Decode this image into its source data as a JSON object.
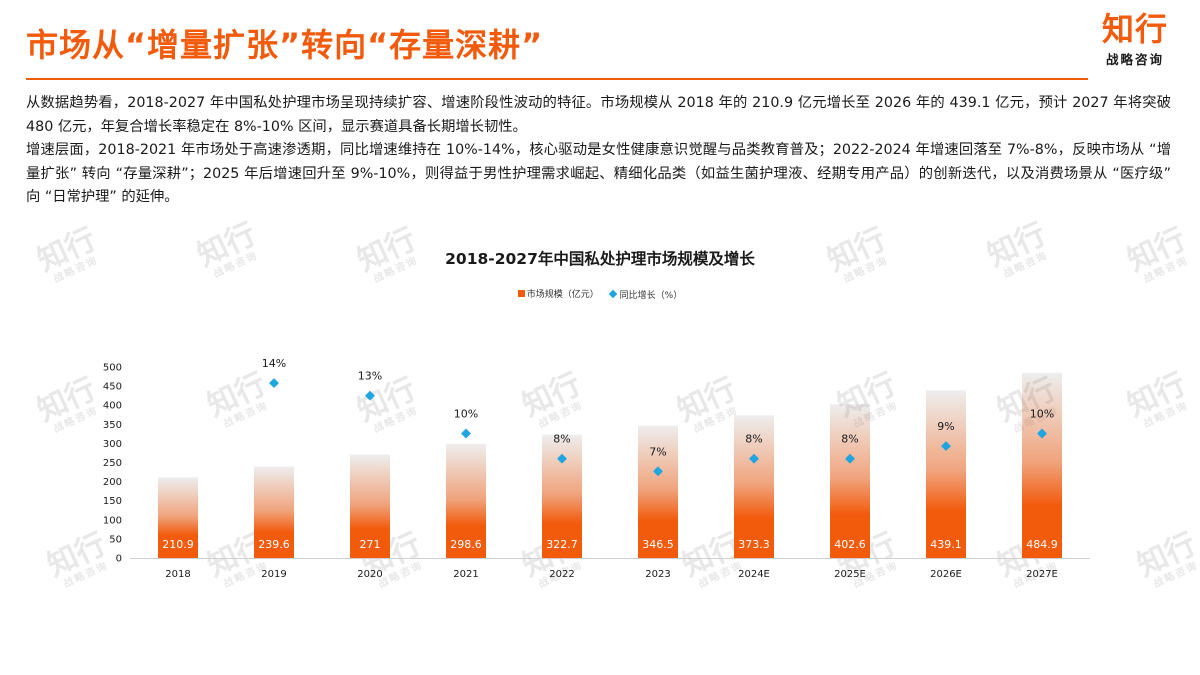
{
  "header": {
    "title": "市场从“增量扩张”转向“存量深耕”",
    "logo_main": "知行",
    "logo_sub": "战略咨询"
  },
  "body": {
    "para1": "从数据趋势看，2018-2027 年中国私处护理市场呈现持续扩容、增速阶段性波动的特征。市场规模从 2018 年的 210.9 亿元增长至 2026 年的 439.1 亿元，预计 2027 年将突破 480 亿元，年复合增长率稳定在 8%-10% 区间，显示赛道具备长期增长韧性。",
    "para2": "增速层面，2018-2021 年市场处于高速渗透期，同比增速维持在 10%-14%，核心驱动是女性健康意识觉醒与品类教育普及；2022-2024 年增速回落至 7%-8%，反映市场从 “增量扩张” 转向 “存量深耕”；2025 年后增速回升至 9%-10%，则得益于男性护理需求崛起、精细化品类（如益生菌护理液、经期专用产品）的创新迭代，以及消费场景从 “医疗级” 向 “日常护理” 的延伸。"
  },
  "chart_data": {
    "type": "bar",
    "title": "2018-2027年中国私处护理市场规模及增长",
    "categories": [
      "2018",
      "2019",
      "2020",
      "2021",
      "2022",
      "2023",
      "2024E",
      "2025E",
      "2026E",
      "2027E"
    ],
    "series": [
      {
        "name": "市场规模（亿元）",
        "type": "bar",
        "values": [
          210.9,
          239.6,
          271,
          298.6,
          322.7,
          346.5,
          373.3,
          402.6,
          439.1,
          484.9
        ],
        "labels": [
          "210.9",
          "239.6",
          "271",
          "298.6",
          "322.7",
          "346.5",
          "373.3",
          "402.6",
          "439.1",
          "484.9"
        ],
        "color": "#f25a0c"
      },
      {
        "name": "同比增长（%）",
        "type": "scatter",
        "values": [
          null,
          14,
          13,
          10,
          8,
          7,
          8,
          8,
          9,
          10
        ],
        "labels": [
          "",
          "14%",
          "13%",
          "10%",
          "8%",
          "7%",
          "8%",
          "8%",
          "9%",
          "10%"
        ],
        "color": "#1fa5e0"
      }
    ],
    "y_ticks": [
      "0",
      "50",
      "100",
      "150",
      "200",
      "250",
      "300",
      "350",
      "400",
      "450",
      "500"
    ],
    "ylim": [
      0,
      500
    ],
    "legend_position": "top-center",
    "grid": false
  },
  "watermark": {
    "main": "知行",
    "sub": "战略咨询"
  }
}
